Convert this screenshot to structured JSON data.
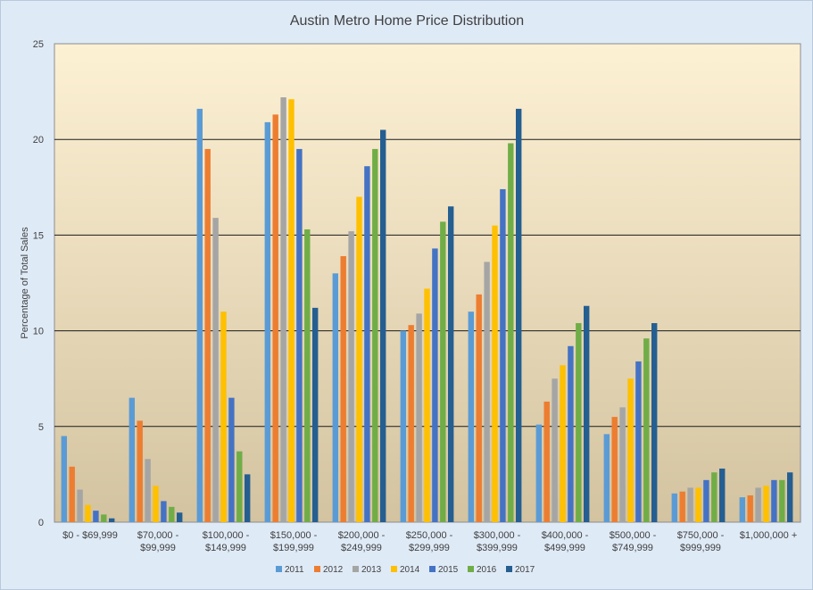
{
  "chart_data": {
    "type": "bar",
    "title": "Austin Metro Home Price Distribution",
    "xlabel": "",
    "ylabel": "Percentage of Total Sales",
    "ylim": [
      0,
      25
    ],
    "yticks": [
      0,
      5,
      10,
      15,
      20,
      25
    ],
    "grid": true,
    "legend_position": "bottom",
    "categories": [
      [
        "$0 - $69,999"
      ],
      [
        "$70,000 -",
        "$99,999"
      ],
      [
        "$100,000 -",
        "$149,999"
      ],
      [
        "$150,000 -",
        "$199,999"
      ],
      [
        "$200,000 -",
        "$249,999"
      ],
      [
        "$250,000 -",
        "$299,999"
      ],
      [
        "$300,000 -",
        "$399,999"
      ],
      [
        "$400,000 -",
        "$499,999"
      ],
      [
        "$500,000 -",
        "$749,999"
      ],
      [
        "$750,000 -",
        "$999,999"
      ],
      [
        "$1,000,000 +"
      ]
    ],
    "series": [
      {
        "name": "2011",
        "color": "#5b9bd5",
        "values": [
          4.5,
          6.5,
          21.6,
          20.9,
          13.0,
          10.0,
          11.0,
          5.1,
          4.6,
          1.5,
          1.3
        ]
      },
      {
        "name": "2012",
        "color": "#ed7d31",
        "values": [
          2.9,
          5.3,
          19.5,
          21.3,
          13.9,
          10.3,
          11.9,
          6.3,
          5.5,
          1.6,
          1.4
        ]
      },
      {
        "name": "2013",
        "color": "#a5a5a5",
        "values": [
          1.7,
          3.3,
          15.9,
          22.2,
          15.2,
          10.9,
          13.6,
          7.5,
          6.0,
          1.8,
          1.8
        ]
      },
      {
        "name": "2014",
        "color": "#ffc000",
        "values": [
          0.9,
          1.9,
          11.0,
          22.1,
          17.0,
          12.2,
          15.5,
          8.2,
          7.5,
          1.8,
          1.9
        ]
      },
      {
        "name": "2015",
        "color": "#4472c4",
        "values": [
          0.6,
          1.1,
          6.5,
          19.5,
          18.6,
          14.3,
          17.4,
          9.2,
          8.4,
          2.2,
          2.2
        ]
      },
      {
        "name": "2016",
        "color": "#70ad47",
        "values": [
          0.4,
          0.8,
          3.7,
          15.3,
          19.5,
          15.7,
          19.8,
          10.4,
          9.6,
          2.6,
          2.2
        ]
      },
      {
        "name": "2017",
        "color": "#255e91",
        "values": [
          0.2,
          0.5,
          2.5,
          11.2,
          20.5,
          16.5,
          21.6,
          11.3,
          10.4,
          2.8,
          2.6
        ]
      }
    ]
  }
}
